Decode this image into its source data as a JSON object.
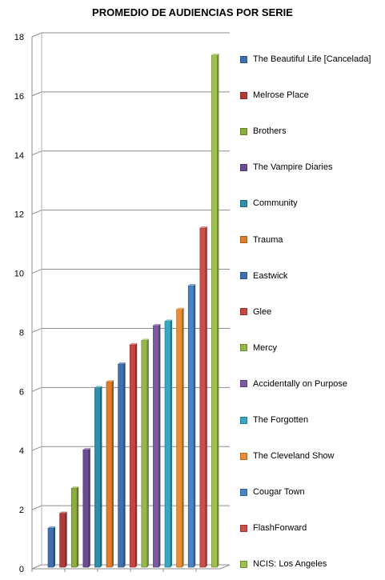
{
  "chart_data": {
    "type": "bar",
    "title": "PROMEDIO DE AUDIENCIAS POR SERIE",
    "xlabel": "",
    "ylabel": "",
    "ylim": [
      0,
      18
    ],
    "yticks": [
      "0",
      "2",
      "4",
      "6",
      "8",
      "10",
      "12",
      "14",
      "16",
      "18"
    ],
    "grid": true,
    "legend_position": "right",
    "series": [
      {
        "name": "The Beautiful Life [Cancelada]",
        "value": 1.3,
        "color": "#3f6fb0"
      },
      {
        "name": "Melrose Place",
        "value": 1.8,
        "color": "#b03b38"
      },
      {
        "name": "Brothers",
        "value": 2.65,
        "color": "#8bad3d"
      },
      {
        "name": "The Vampire Diaries",
        "value": 3.95,
        "color": "#6a4c93"
      },
      {
        "name": "Community",
        "value": 6.05,
        "color": "#2f8ea8"
      },
      {
        "name": "Trauma",
        "value": 6.25,
        "color": "#e07d2a"
      },
      {
        "name": "Eastwick",
        "value": 6.85,
        "color": "#3f6fb0"
      },
      {
        "name": "Glee",
        "value": 7.5,
        "color": "#c44643"
      },
      {
        "name": "Mercy",
        "value": 7.65,
        "color": "#94b84a"
      },
      {
        "name": "Accidentally on Purpose",
        "value": 8.15,
        "color": "#7a5aa3"
      },
      {
        "name": "The Forgotten",
        "value": 8.3,
        "color": "#36a7c4"
      },
      {
        "name": "The Cleveland Show",
        "value": 8.7,
        "color": "#eb8b34"
      },
      {
        "name": "Cougar Town",
        "value": 9.5,
        "color": "#4a82c8"
      },
      {
        "name": "FlashForward",
        "value": 11.45,
        "color": "#cc4e4b"
      },
      {
        "name": "NCIS: Los Angeles",
        "value": 17.3,
        "color": "#9dc14f"
      }
    ]
  }
}
